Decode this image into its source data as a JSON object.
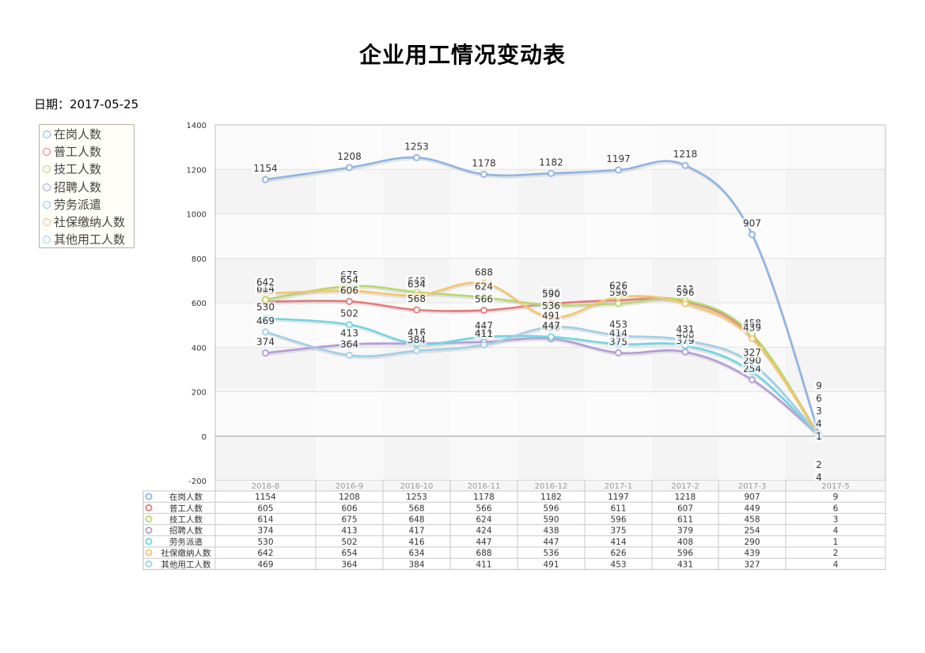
{
  "title": "企业用工情况变动表",
  "date": "日期：2017-05-25",
  "chart_data": {
    "type": "line",
    "categories": [
      "2016-8",
      "2016-9",
      "2016-10",
      "2016-11",
      "2016-12",
      "2017-1",
      "2017-2",
      "2017-3",
      "2017-5"
    ],
    "ylim": [
      -200,
      1400
    ],
    "yticks": [
      -200,
      0,
      200,
      400,
      600,
      800,
      1000,
      1200,
      1400
    ],
    "grid": true,
    "legend_position": "left",
    "series": [
      {
        "name": "在岗人数",
        "color": "#8fb4e3",
        "values": [
          1154,
          1208,
          1253,
          1178,
          1182,
          1197,
          1218,
          907,
          9
        ]
      },
      {
        "name": "普工人数",
        "color": "#e67a7a",
        "values": [
          605,
          606,
          568,
          566,
          596,
          611,
          607,
          449,
          6
        ]
      },
      {
        "name": "技工人数",
        "color": "#b7d86b",
        "values": [
          614,
          675,
          648,
          624,
          590,
          596,
          611,
          458,
          3
        ]
      },
      {
        "name": "招聘人数",
        "color": "#b49ad8",
        "values": [
          374,
          413,
          417,
          424,
          438,
          375,
          379,
          254,
          4
        ]
      },
      {
        "name": "劳务派遣",
        "color": "#6fd6e3",
        "values": [
          530,
          502,
          416,
          447,
          447,
          414,
          408,
          290,
          1
        ]
      },
      {
        "name": "社保缴纳人数",
        "color": "#f5c56a",
        "values": [
          642,
          654,
          634,
          688,
          536,
          626,
          596,
          439,
          2
        ]
      },
      {
        "name": "其他用工人数",
        "color": "#9fcfe8",
        "values": [
          469,
          364,
          384,
          411,
          491,
          453,
          431,
          327,
          4
        ]
      }
    ]
  }
}
